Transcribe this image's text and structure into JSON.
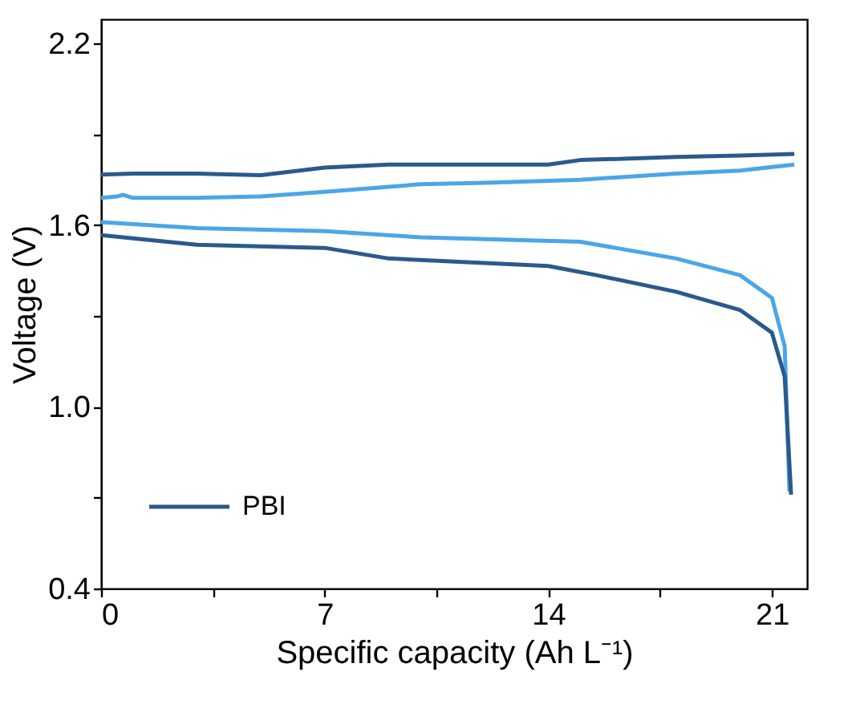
{
  "chart_data": {
    "type": "line",
    "xlabel": "Specific capacity (Ah L⁻¹)",
    "ylabel": "Voltage (V)",
    "xlim": [
      0,
      22.1
    ],
    "ylim": [
      0.4,
      2.28
    ],
    "xticks": [
      0,
      {
        "value": 3.5,
        "label": null
      },
      7,
      {
        "value": 10.5,
        "label": null
      },
      14,
      {
        "value": 17.5,
        "label": null
      },
      21
    ],
    "yticks": [
      0.4,
      {
        "value": 0.7,
        "label": null
      },
      {
        "value": 1.0,
        "label": "1.0"
      },
      {
        "value": 1.3,
        "label": null
      },
      1.6,
      {
        "value": 1.9,
        "label": null
      },
      2.2
    ],
    "grid": false,
    "legend": "bottom left",
    "marker": "none",
    "line_style": "solid",
    "series": [
      {
        "color": "#4aa6e8",
        "x": [
          0,
          0.5,
          0.7,
          1,
          3,
          5,
          7,
          10,
          12,
          15,
          18,
          20,
          21.7
        ],
        "values": [
          1.69,
          1.695,
          1.7,
          1.69,
          1.69,
          1.695,
          1.71,
          1.735,
          1.74,
          1.75,
          1.77,
          1.78,
          1.8
        ]
      },
      {
        "color": "#4aa6e8",
        "x": [
          0,
          3,
          7,
          10,
          15,
          18,
          20,
          21,
          21.4,
          21.55
        ],
        "values": [
          1.61,
          1.59,
          1.58,
          1.56,
          1.545,
          1.49,
          1.435,
          1.36,
          1.2,
          0.72
        ]
      },
      {
        "name": "PBI",
        "color": "#2a5a8c",
        "x": [
          0,
          1,
          3,
          5,
          7,
          9,
          12,
          14,
          15,
          18,
          20,
          21.7
        ],
        "values": [
          1.767,
          1.77,
          1.77,
          1.765,
          1.79,
          1.8,
          1.8,
          1.8,
          1.815,
          1.825,
          1.83,
          1.835
        ]
      },
      {
        "color": "#2a5a8c",
        "x": [
          0,
          3,
          7,
          9,
          14,
          15.5,
          18,
          20,
          21,
          21.4,
          21.6
        ],
        "values": [
          1.567,
          1.535,
          1.525,
          1.49,
          1.465,
          1.435,
          1.38,
          1.32,
          1.245,
          1.1,
          0.71
        ]
      }
    ]
  }
}
